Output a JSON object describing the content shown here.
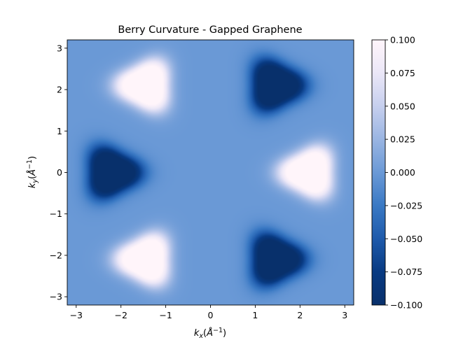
{
  "chart_data": {
    "type": "heatmap",
    "title": "Berry Curvature - Gapped Graphene",
    "xlabel": "k_x(Å^-1)",
    "ylabel": "k_y(Å^-1)",
    "xlim": [
      -3.2,
      3.2
    ],
    "ylim": [
      -3.2,
      3.2
    ],
    "x_ticks": [
      -3,
      -2,
      -1,
      0,
      1,
      2,
      3
    ],
    "x_tick_labels": [
      "−3",
      "−2",
      "−1",
      "0",
      "1",
      "2",
      "3"
    ],
    "y_ticks": [
      -3,
      -2,
      -1,
      0,
      1,
      2,
      3
    ],
    "y_tick_labels": [
      "−3",
      "−2",
      "−1",
      "0",
      "1",
      "2",
      "3"
    ],
    "colorbar": {
      "colormap": "blue-white",
      "range": [
        -0.1,
        0.1
      ],
      "ticks": [
        0.1,
        0.075,
        0.05,
        0.025,
        0.0,
        -0.025,
        -0.05,
        -0.075,
        -0.1
      ],
      "tick_labels": [
        "0.100",
        "0.075",
        "0.050",
        "0.025",
        "0.000",
        "−0.025",
        "−0.050",
        "−0.075",
        "−0.100"
      ]
    },
    "background_value": 0.0,
    "peaks": [
      {
        "kx": 2.2,
        "ky": 0.0,
        "value": 0.1
      },
      {
        "kx": -1.45,
        "ky": 2.1,
        "value": 0.1
      },
      {
        "kx": -1.45,
        "ky": -2.1,
        "value": 0.1
      },
      {
        "kx": -2.2,
        "ky": 0.0,
        "value": -0.1
      },
      {
        "kx": 1.45,
        "ky": 2.1,
        "value": -0.1
      },
      {
        "kx": 1.45,
        "ky": -2.1,
        "value": -0.1
      }
    ],
    "grid": false,
    "legend": "none"
  }
}
